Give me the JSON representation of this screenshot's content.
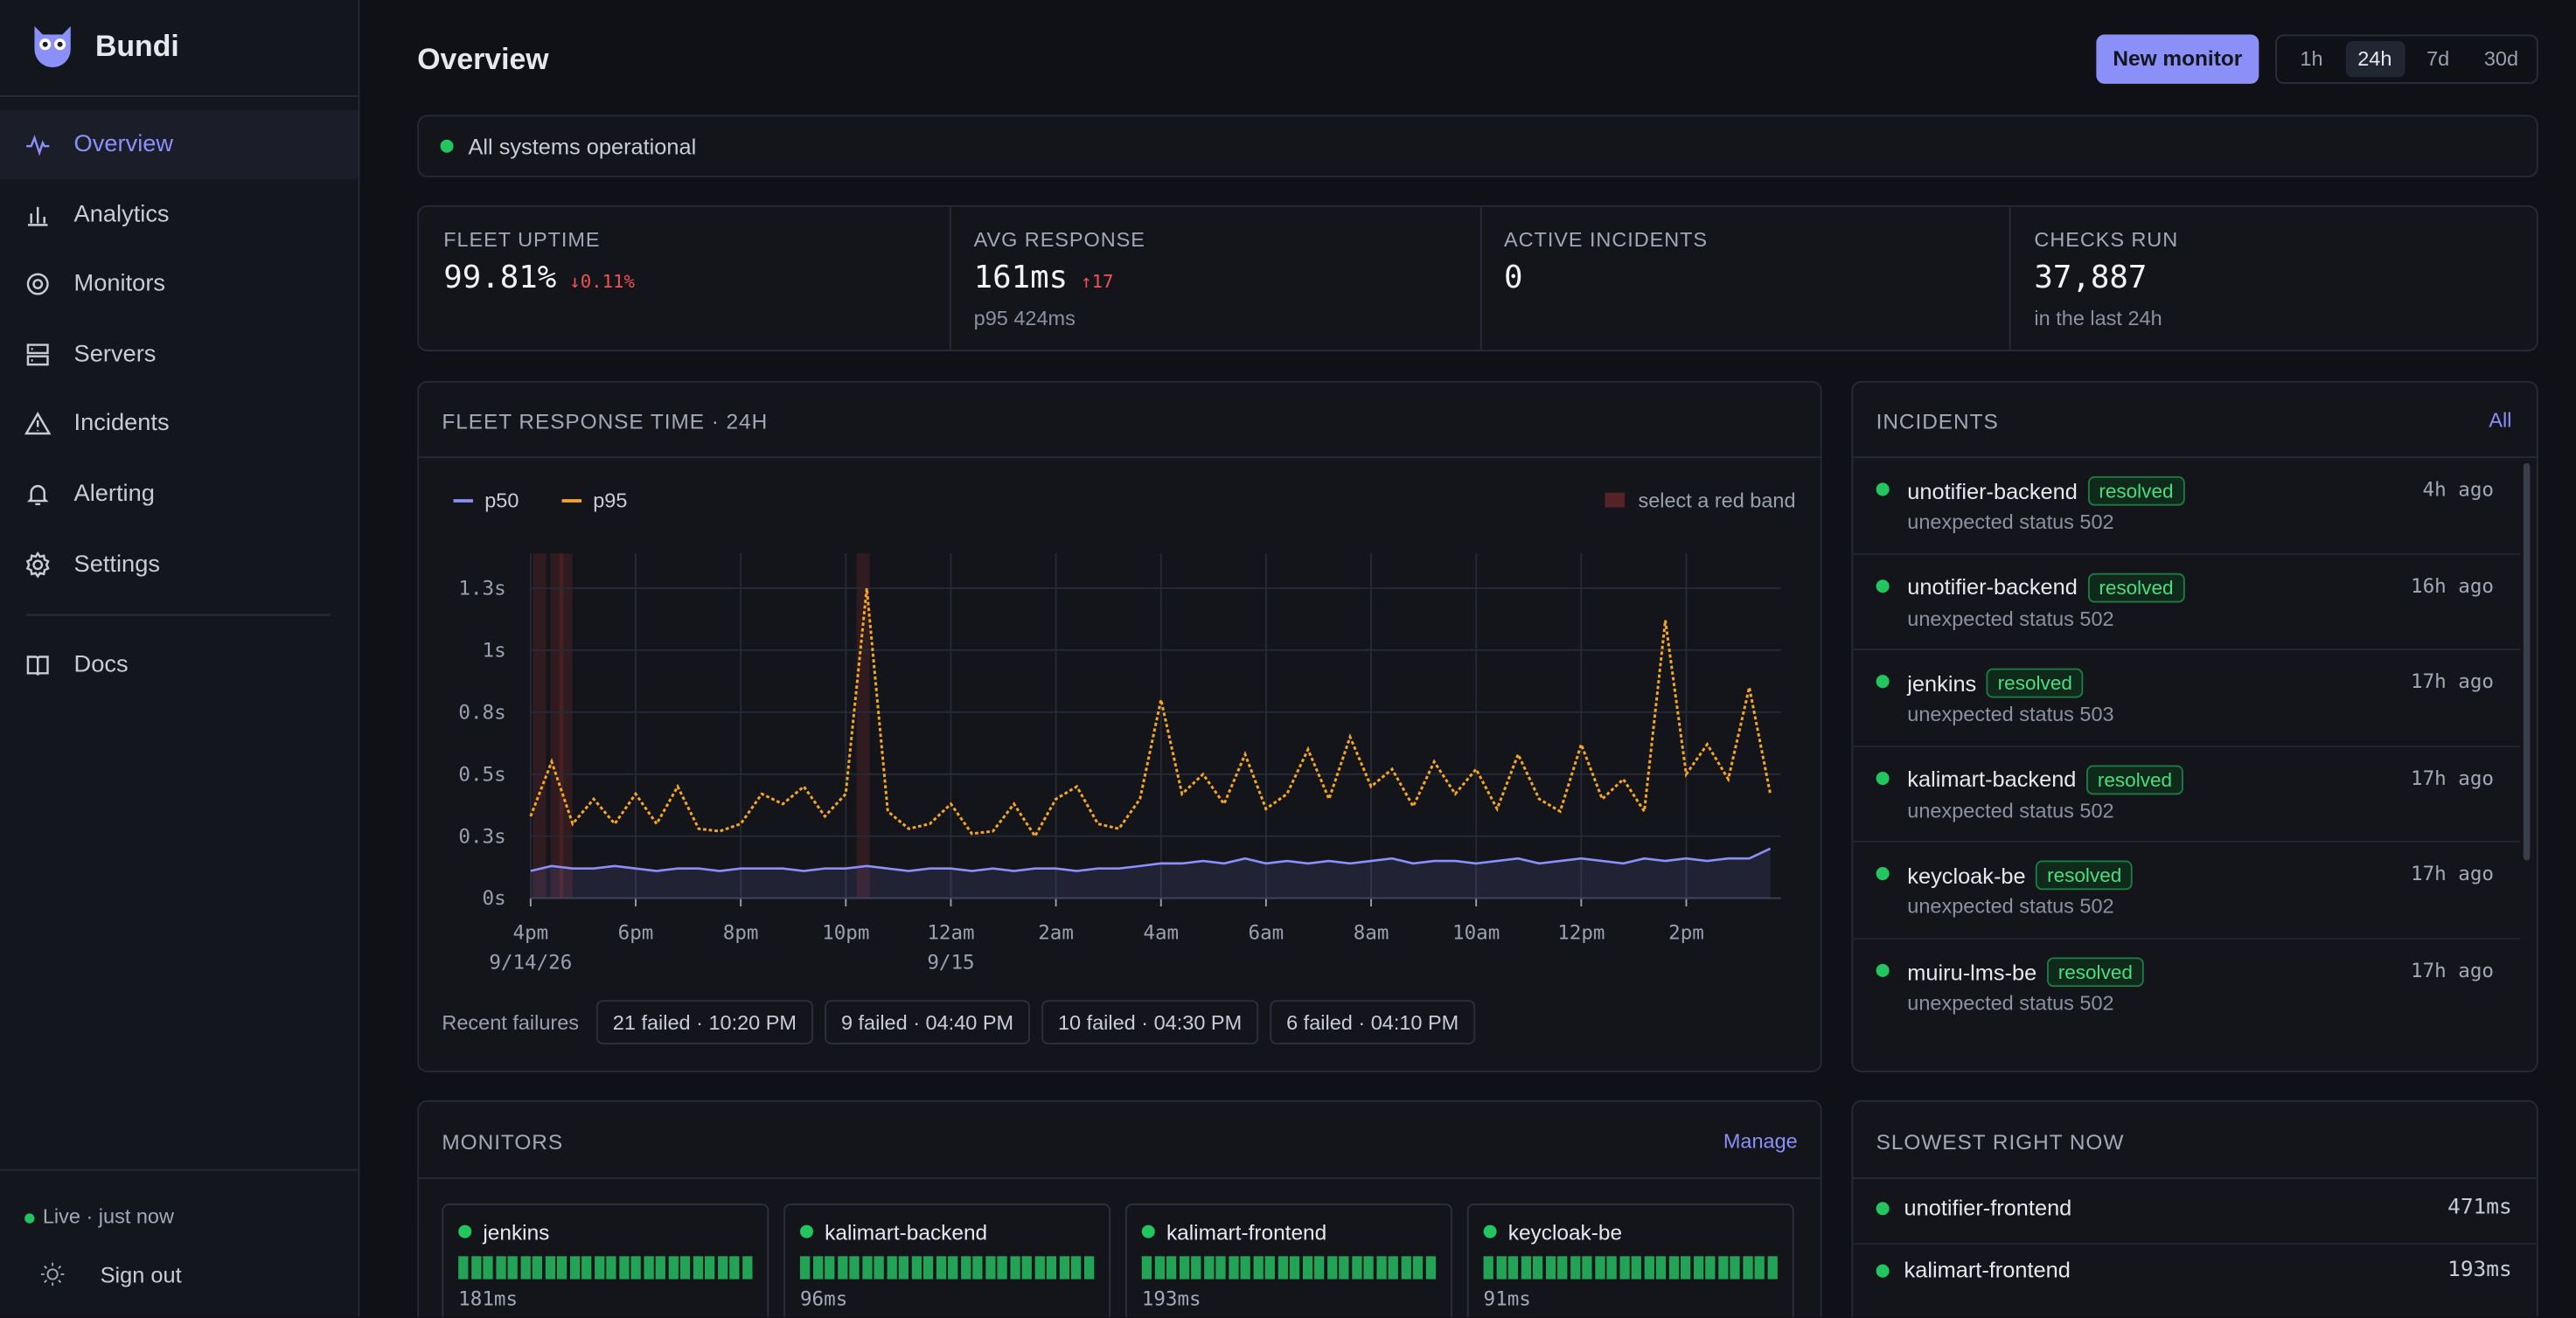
{
  "sidebar": {
    "brand": "Bundi",
    "nav": [
      "Overview",
      "Analytics",
      "Monitors",
      "Servers",
      "Incidents",
      "Alerting",
      "Settings"
    ],
    "active": "Overview",
    "docs": "Docs",
    "status": "Live · just now",
    "sign_out": "Sign out"
  },
  "header": {
    "title": "Overview",
    "new_monitor": "New monitor",
    "ranges": [
      "1h",
      "24h",
      "7d",
      "30d"
    ],
    "active_range": "24h"
  },
  "status": "All systems operational",
  "stats": [
    {
      "label": "FLEET UPTIME",
      "value": "99.81%",
      "delta": "↓0.11%"
    },
    {
      "label": "AVG RESPONSE",
      "value": "161ms",
      "delta": "↑17",
      "sub": "p95 424ms"
    },
    {
      "label": "ACTIVE INCIDENTS",
      "value": "0"
    },
    {
      "label": "CHECKS RUN",
      "value": "37,887",
      "sub": "in the last 24h"
    }
  ],
  "chart_data": {
    "type": "line",
    "title": "FLEET RESPONSE TIME · 24H",
    "legend_note": "select a red band",
    "x": [
      0,
      0.4,
      0.8,
      1.2,
      1.6,
      2,
      2.4,
      2.8,
      3.2,
      3.6,
      4,
      4.4,
      4.8,
      5.2,
      5.6,
      6,
      6.4,
      6.8,
      7.2,
      7.6,
      8,
      8.4,
      8.8,
      9.2,
      9.6,
      10,
      10.4,
      10.8,
      11.2,
      11.6,
      12,
      12.4,
      12.8,
      13.2,
      13.6,
      14,
      14.4,
      14.8,
      15.2,
      15.6,
      16,
      16.4,
      16.8,
      17.2,
      17.6,
      18,
      18.4,
      18.8,
      19.2,
      19.6,
      20,
      20.4,
      20.8,
      21.2,
      21.6,
      22,
      22.4,
      22.8,
      23.2,
      23.6
    ],
    "series": [
      {
        "name": "p50",
        "color": "#8b8ff8",
        "values": [
          0.11,
          0.13,
          0.12,
          0.12,
          0.13,
          0.12,
          0.11,
          0.12,
          0.12,
          0.11,
          0.12,
          0.12,
          0.12,
          0.11,
          0.12,
          0.12,
          0.13,
          0.12,
          0.11,
          0.12,
          0.12,
          0.11,
          0.12,
          0.11,
          0.12,
          0.12,
          0.11,
          0.12,
          0.12,
          0.13,
          0.14,
          0.14,
          0.15,
          0.14,
          0.16,
          0.14,
          0.15,
          0.14,
          0.15,
          0.14,
          0.15,
          0.16,
          0.14,
          0.15,
          0.15,
          0.14,
          0.15,
          0.16,
          0.14,
          0.15,
          0.16,
          0.15,
          0.14,
          0.16,
          0.15,
          0.16,
          0.15,
          0.16,
          0.16,
          0.2
        ]
      },
      {
        "name": "p95",
        "color": "#f5a623",
        "values": [
          0.33,
          0.55,
          0.3,
          0.4,
          0.3,
          0.42,
          0.3,
          0.45,
          0.28,
          0.27,
          0.3,
          0.42,
          0.38,
          0.45,
          0.33,
          0.42,
          1.25,
          0.35,
          0.28,
          0.3,
          0.38,
          0.26,
          0.27,
          0.38,
          0.25,
          0.4,
          0.45,
          0.3,
          0.28,
          0.4,
          0.8,
          0.42,
          0.5,
          0.38,
          0.58,
          0.36,
          0.42,
          0.6,
          0.4,
          0.65,
          0.45,
          0.52,
          0.37,
          0.55,
          0.42,
          0.52,
          0.36,
          0.58,
          0.4,
          0.35,
          0.62,
          0.4,
          0.48,
          0.35,
          1.12,
          0.5,
          0.62,
          0.48,
          0.85,
          0.42
        ]
      }
    ],
    "xlim": [
      0,
      23.8
    ],
    "ylim": [
      0,
      1.39
    ],
    "xticks": [
      {
        "value": 0,
        "label": "4pm"
      },
      {
        "value": 2,
        "label": "6pm"
      },
      {
        "value": 4,
        "label": "8pm"
      },
      {
        "value": 6,
        "label": "10pm"
      },
      {
        "value": 8,
        "label": "12am"
      },
      {
        "value": 10,
        "label": "2am"
      },
      {
        "value": 12,
        "label": "4am"
      },
      {
        "value": 14,
        "label": "6am"
      },
      {
        "value": 16,
        "label": "8am"
      },
      {
        "value": 18,
        "label": "10am"
      },
      {
        "value": 20,
        "label": "12pm"
      },
      {
        "value": 22,
        "label": "2pm"
      }
    ],
    "xtick_dates": [
      {
        "value": 0,
        "label": "9/14/26"
      },
      {
        "value": 8,
        "label": "9/15"
      }
    ],
    "yticks": [
      {
        "value": 0,
        "label": "0s"
      },
      {
        "value": 0.25,
        "label": "0.3s"
      },
      {
        "value": 0.5,
        "label": "0.5s"
      },
      {
        "value": 0.75,
        "label": "0.8s"
      },
      {
        "value": 1,
        "label": "1s"
      },
      {
        "value": 1.25,
        "label": "1.3s"
      }
    ],
    "grid": true,
    "bands": [
      0.17,
      0.5,
      0.67,
      6.33
    ],
    "band_color": "#ef4444"
  },
  "failures": {
    "label": "Recent failures",
    "items": [
      "21 failed · 10:20 PM",
      "9 failed · 04:40 PM",
      "10 failed · 04:30 PM",
      "6 failed · 04:10 PM"
    ]
  },
  "incidents": {
    "title": "INCIDENTS",
    "link": "All",
    "items": [
      {
        "name": "unotifier-backend",
        "status": "resolved",
        "detail": "unexpected status 502",
        "time": "4h ago"
      },
      {
        "name": "unotifier-backend",
        "status": "resolved",
        "detail": "unexpected status 502",
        "time": "16h ago"
      },
      {
        "name": "jenkins",
        "status": "resolved",
        "detail": "unexpected status 503",
        "time": "17h ago"
      },
      {
        "name": "kalimart-backend",
        "status": "resolved",
        "detail": "unexpected status 502",
        "time": "17h ago"
      },
      {
        "name": "keycloak-be",
        "status": "resolved",
        "detail": "unexpected status 502",
        "time": "17h ago"
      },
      {
        "name": "muiru-lms-be",
        "status": "resolved",
        "detail": "unexpected status 502",
        "time": "17h ago"
      }
    ]
  },
  "monitors": {
    "title": "MONITORS",
    "link": "Manage",
    "items": [
      {
        "name": "jenkins",
        "latency": "181ms"
      },
      {
        "name": "kalimart-backend",
        "latency": "96ms"
      },
      {
        "name": "kalimart-frontend",
        "latency": "193ms"
      },
      {
        "name": "keycloak-be",
        "latency": "91ms"
      }
    ]
  },
  "slowest": {
    "title": "SLOWEST RIGHT NOW",
    "items": [
      {
        "name": "unotifier-frontend",
        "latency": "471ms"
      },
      {
        "name": "kalimart-frontend",
        "latency": "193ms"
      }
    ]
  }
}
